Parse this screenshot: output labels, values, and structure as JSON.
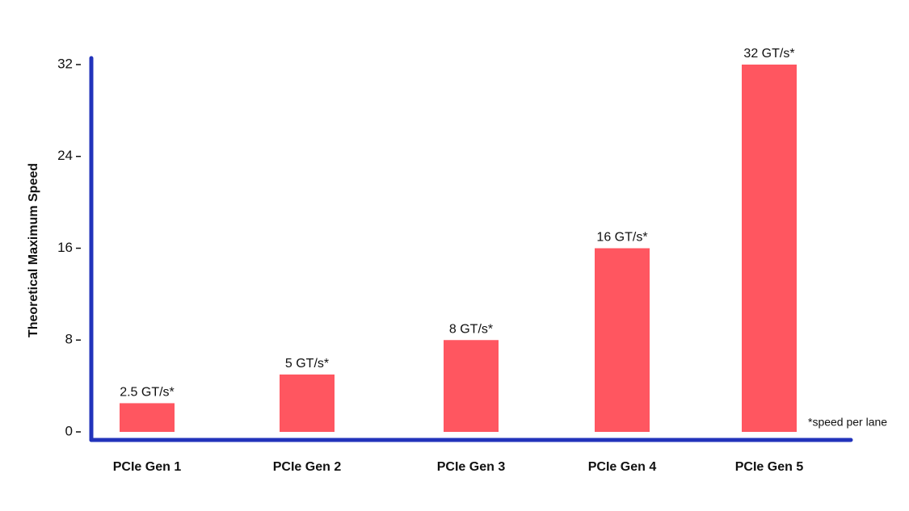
{
  "chart_data": {
    "type": "bar",
    "y_label": "Theoretical Maximum Speed",
    "categories": [
      "PCIe Gen 1",
      "PCIe Gen 2",
      "PCIe Gen 3",
      "PCIe Gen 4",
      "PCIe Gen 5"
    ],
    "values": [
      2.5,
      5,
      8,
      16,
      32
    ],
    "value_labels": [
      "2.5 GT/s*",
      "5 GT/s*",
      "8 GT/s*",
      "16 GT/s*",
      "32 GT/s*"
    ],
    "color": "#ff5660",
    "axis_color": "#2233bb",
    "ylim": [
      0,
      32
    ],
    "yticks": [
      0,
      8,
      16,
      24,
      32
    ],
    "grid": false,
    "annotation": "*speed per lane"
  }
}
